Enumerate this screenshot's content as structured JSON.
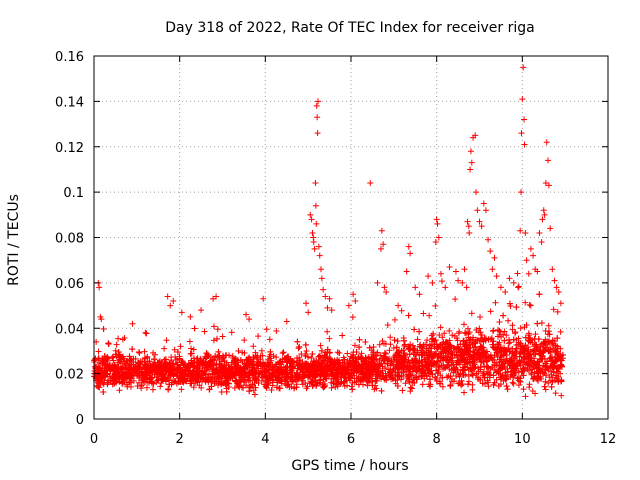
{
  "chart_data": {
    "type": "scatter",
    "title": "Day 318 of 2022, Rate Of TEC Index for receiver riga",
    "xlabel": "GPS time / hours",
    "ylabel": "ROTI / TECUs",
    "xlim": [
      0,
      12
    ],
    "ylim": [
      0,
      0.16
    ],
    "x_ticks": [
      0,
      2,
      4,
      6,
      8,
      10,
      12
    ],
    "y_ticks": [
      0,
      0.02,
      0.04,
      0.06,
      0.08,
      0.1,
      0.12,
      0.14,
      0.16
    ],
    "x_tick_labels": [
      "0",
      "2",
      "4",
      "6",
      "8",
      "10",
      "12"
    ],
    "y_tick_labels": [
      "0",
      "0.02",
      "0.04",
      "0.06",
      "0.08",
      "0.1",
      "0.12",
      "0.14",
      "0.16"
    ],
    "grid": true,
    "marker": "+",
    "series": [
      {
        "name": "ROTI",
        "color": "#ff0000",
        "points": [
          [
            0.05,
            0.034
          ],
          [
            0.1,
            0.06
          ],
          [
            0.12,
            0.058
          ],
          [
            0.15,
            0.045
          ],
          [
            0.17,
            0.044
          ],
          [
            0.9,
            0.042
          ],
          [
            1.2,
            0.038
          ],
          [
            1.72,
            0.054
          ],
          [
            1.78,
            0.05
          ],
          [
            1.85,
            0.052
          ],
          [
            2.05,
            0.047
          ],
          [
            2.25,
            0.045
          ],
          [
            2.5,
            0.048
          ],
          [
            2.78,
            0.053
          ],
          [
            2.85,
            0.054
          ],
          [
            3.55,
            0.046
          ],
          [
            3.62,
            0.044
          ],
          [
            3.95,
            0.053
          ],
          [
            4.5,
            0.043
          ],
          [
            4.95,
            0.051
          ],
          [
            5.0,
            0.047
          ],
          [
            5.05,
            0.09
          ],
          [
            5.08,
            0.088
          ],
          [
            5.1,
            0.082
          ],
          [
            5.12,
            0.08
          ],
          [
            5.13,
            0.078
          ],
          [
            5.15,
            0.075
          ],
          [
            5.17,
            0.104
          ],
          [
            5.18,
            0.094
          ],
          [
            5.19,
            0.086
          ],
          [
            5.2,
            0.138
          ],
          [
            5.21,
            0.133
          ],
          [
            5.22,
            0.126
          ],
          [
            5.23,
            0.14
          ],
          [
            5.25,
            0.076
          ],
          [
            5.27,
            0.072
          ],
          [
            5.3,
            0.066
          ],
          [
            5.32,
            0.062
          ],
          [
            5.35,
            0.057
          ],
          [
            5.4,
            0.054
          ],
          [
            5.45,
            0.049
          ],
          [
            5.5,
            0.053
          ],
          [
            5.55,
            0.048
          ],
          [
            5.95,
            0.05
          ],
          [
            6.05,
            0.055
          ],
          [
            6.1,
            0.052
          ],
          [
            6.45,
            0.104
          ],
          [
            6.62,
            0.06
          ],
          [
            6.7,
            0.075
          ],
          [
            6.72,
            0.083
          ],
          [
            6.75,
            0.077
          ],
          [
            6.78,
            0.058
          ],
          [
            6.82,
            0.056
          ],
          [
            7.1,
            0.05
          ],
          [
            7.3,
            0.065
          ],
          [
            7.35,
            0.076
          ],
          [
            7.38,
            0.073
          ],
          [
            7.5,
            0.058
          ],
          [
            7.6,
            0.055
          ],
          [
            7.8,
            0.063
          ],
          [
            7.9,
            0.06
          ],
          [
            7.98,
            0.078
          ],
          [
            8.0,
            0.088
          ],
          [
            8.02,
            0.086
          ],
          [
            8.05,
            0.08
          ],
          [
            8.1,
            0.064
          ],
          [
            8.2,
            0.058
          ],
          [
            8.3,
            0.067
          ],
          [
            8.45,
            0.065
          ],
          [
            8.5,
            0.061
          ],
          [
            8.6,
            0.06
          ],
          [
            8.65,
            0.066
          ],
          [
            8.7,
            0.058
          ],
          [
            8.72,
            0.087
          ],
          [
            8.75,
            0.085
          ],
          [
            8.76,
            0.082
          ],
          [
            8.78,
            0.11
          ],
          [
            8.8,
            0.118
          ],
          [
            8.82,
            0.113
          ],
          [
            8.85,
            0.124
          ],
          [
            8.9,
            0.125
          ],
          [
            8.92,
            0.1
          ],
          [
            8.95,
            0.092
          ],
          [
            9.0,
            0.087
          ],
          [
            9.05,
            0.085
          ],
          [
            9.1,
            0.095
          ],
          [
            9.15,
            0.092
          ],
          [
            9.2,
            0.079
          ],
          [
            9.25,
            0.074
          ],
          [
            9.3,
            0.066
          ],
          [
            9.35,
            0.071
          ],
          [
            9.4,
            0.063
          ],
          [
            9.5,
            0.058
          ],
          [
            9.6,
            0.056
          ],
          [
            9.7,
            0.062
          ],
          [
            9.8,
            0.06
          ],
          [
            9.9,
            0.058
          ],
          [
            9.95,
            0.083
          ],
          [
            9.97,
            0.1
          ],
          [
            9.98,
            0.126
          ],
          [
            10.0,
            0.141
          ],
          [
            10.02,
            0.155
          ],
          [
            10.04,
            0.132
          ],
          [
            10.05,
            0.121
          ],
          [
            10.07,
            0.082
          ],
          [
            10.1,
            0.07
          ],
          [
            10.15,
            0.064
          ],
          [
            10.2,
            0.075
          ],
          [
            10.25,
            0.072
          ],
          [
            10.3,
            0.066
          ],
          [
            10.35,
            0.065
          ],
          [
            10.4,
            0.082
          ],
          [
            10.45,
            0.078
          ],
          [
            10.47,
            0.088
          ],
          [
            10.5,
            0.092
          ],
          [
            10.52,
            0.09
          ],
          [
            10.55,
            0.104
          ],
          [
            10.57,
            0.122
          ],
          [
            10.6,
            0.114
          ],
          [
            10.62,
            0.103
          ],
          [
            10.65,
            0.084
          ],
          [
            10.7,
            0.066
          ],
          [
            10.75,
            0.061
          ],
          [
            10.8,
            0.058
          ],
          [
            10.85,
            0.056
          ],
          [
            10.9,
            0.051
          ]
        ],
        "band": {
          "x_range": [
            0.0,
            10.95
          ],
          "baseline": [
            [
              0,
              0.021
            ],
            [
              2,
              0.021
            ],
            [
              4,
              0.021
            ],
            [
              5,
              0.022
            ],
            [
              6,
              0.021
            ],
            [
              7,
              0.024
            ],
            [
              8,
              0.026
            ],
            [
              9,
              0.027
            ],
            [
              10,
              0.027
            ],
            [
              10.95,
              0.025
            ]
          ],
          "spread": [
            [
              0,
              0.01
            ],
            [
              4,
              0.011
            ],
            [
              6.5,
              0.011
            ],
            [
              7,
              0.014
            ],
            [
              8,
              0.017
            ],
            [
              9,
              0.019
            ],
            [
              10,
              0.02
            ],
            [
              10.95,
              0.018
            ]
          ],
          "count": 4200
        }
      }
    ]
  }
}
